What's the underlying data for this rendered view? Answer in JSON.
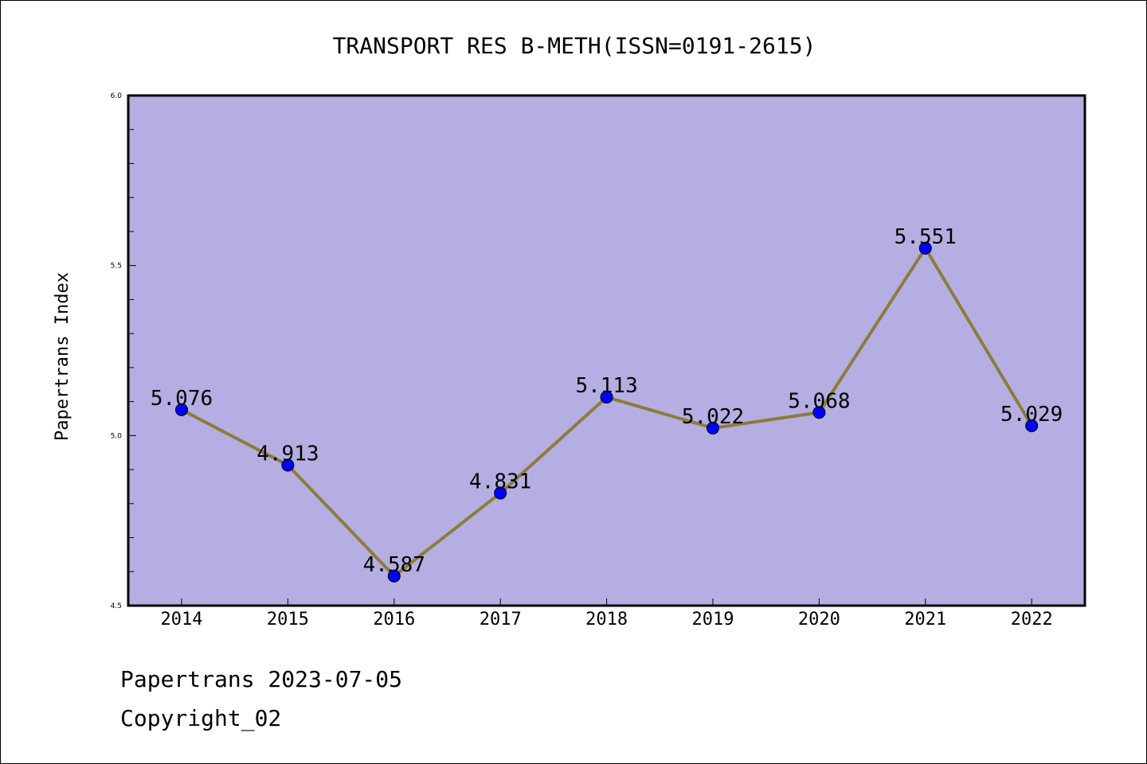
{
  "chart_data": {
    "type": "line",
    "title": "TRANSPORT RES B-METH(ISSN=0191-2615)",
    "xlabel": "",
    "ylabel": "Papertrans Index",
    "categories": [
      "2014",
      "2015",
      "2016",
      "2017",
      "2018",
      "2019",
      "2020",
      "2021",
      "2022"
    ],
    "series": [
      {
        "values": [
          5.076,
          4.913,
          4.587,
          4.831,
          5.113,
          5.022,
          5.068,
          5.551,
          5.029
        ],
        "labels": [
          "5.076",
          "4.913",
          "4.587",
          "4.831",
          "5.113",
          "5.022",
          "5.068",
          "5.551",
          "5.029"
        ]
      }
    ],
    "ylim": [
      4.5,
      6.0
    ],
    "yticks": [
      "4.5",
      "5.0",
      "5.5",
      "6.0"
    ],
    "ytick_values": [
      4.5,
      5.0,
      5.5,
      6.0
    ],
    "minor_tick_step": 0.1,
    "grid": false,
    "colors": {
      "plot_background": "#b5aee2",
      "line": "#8b7d3a",
      "marker": "#0000ff",
      "axes": "#000000"
    }
  },
  "footer": {
    "source_line": "Papertrans 2023-07-05",
    "copyright_line": "Copyright_02"
  }
}
